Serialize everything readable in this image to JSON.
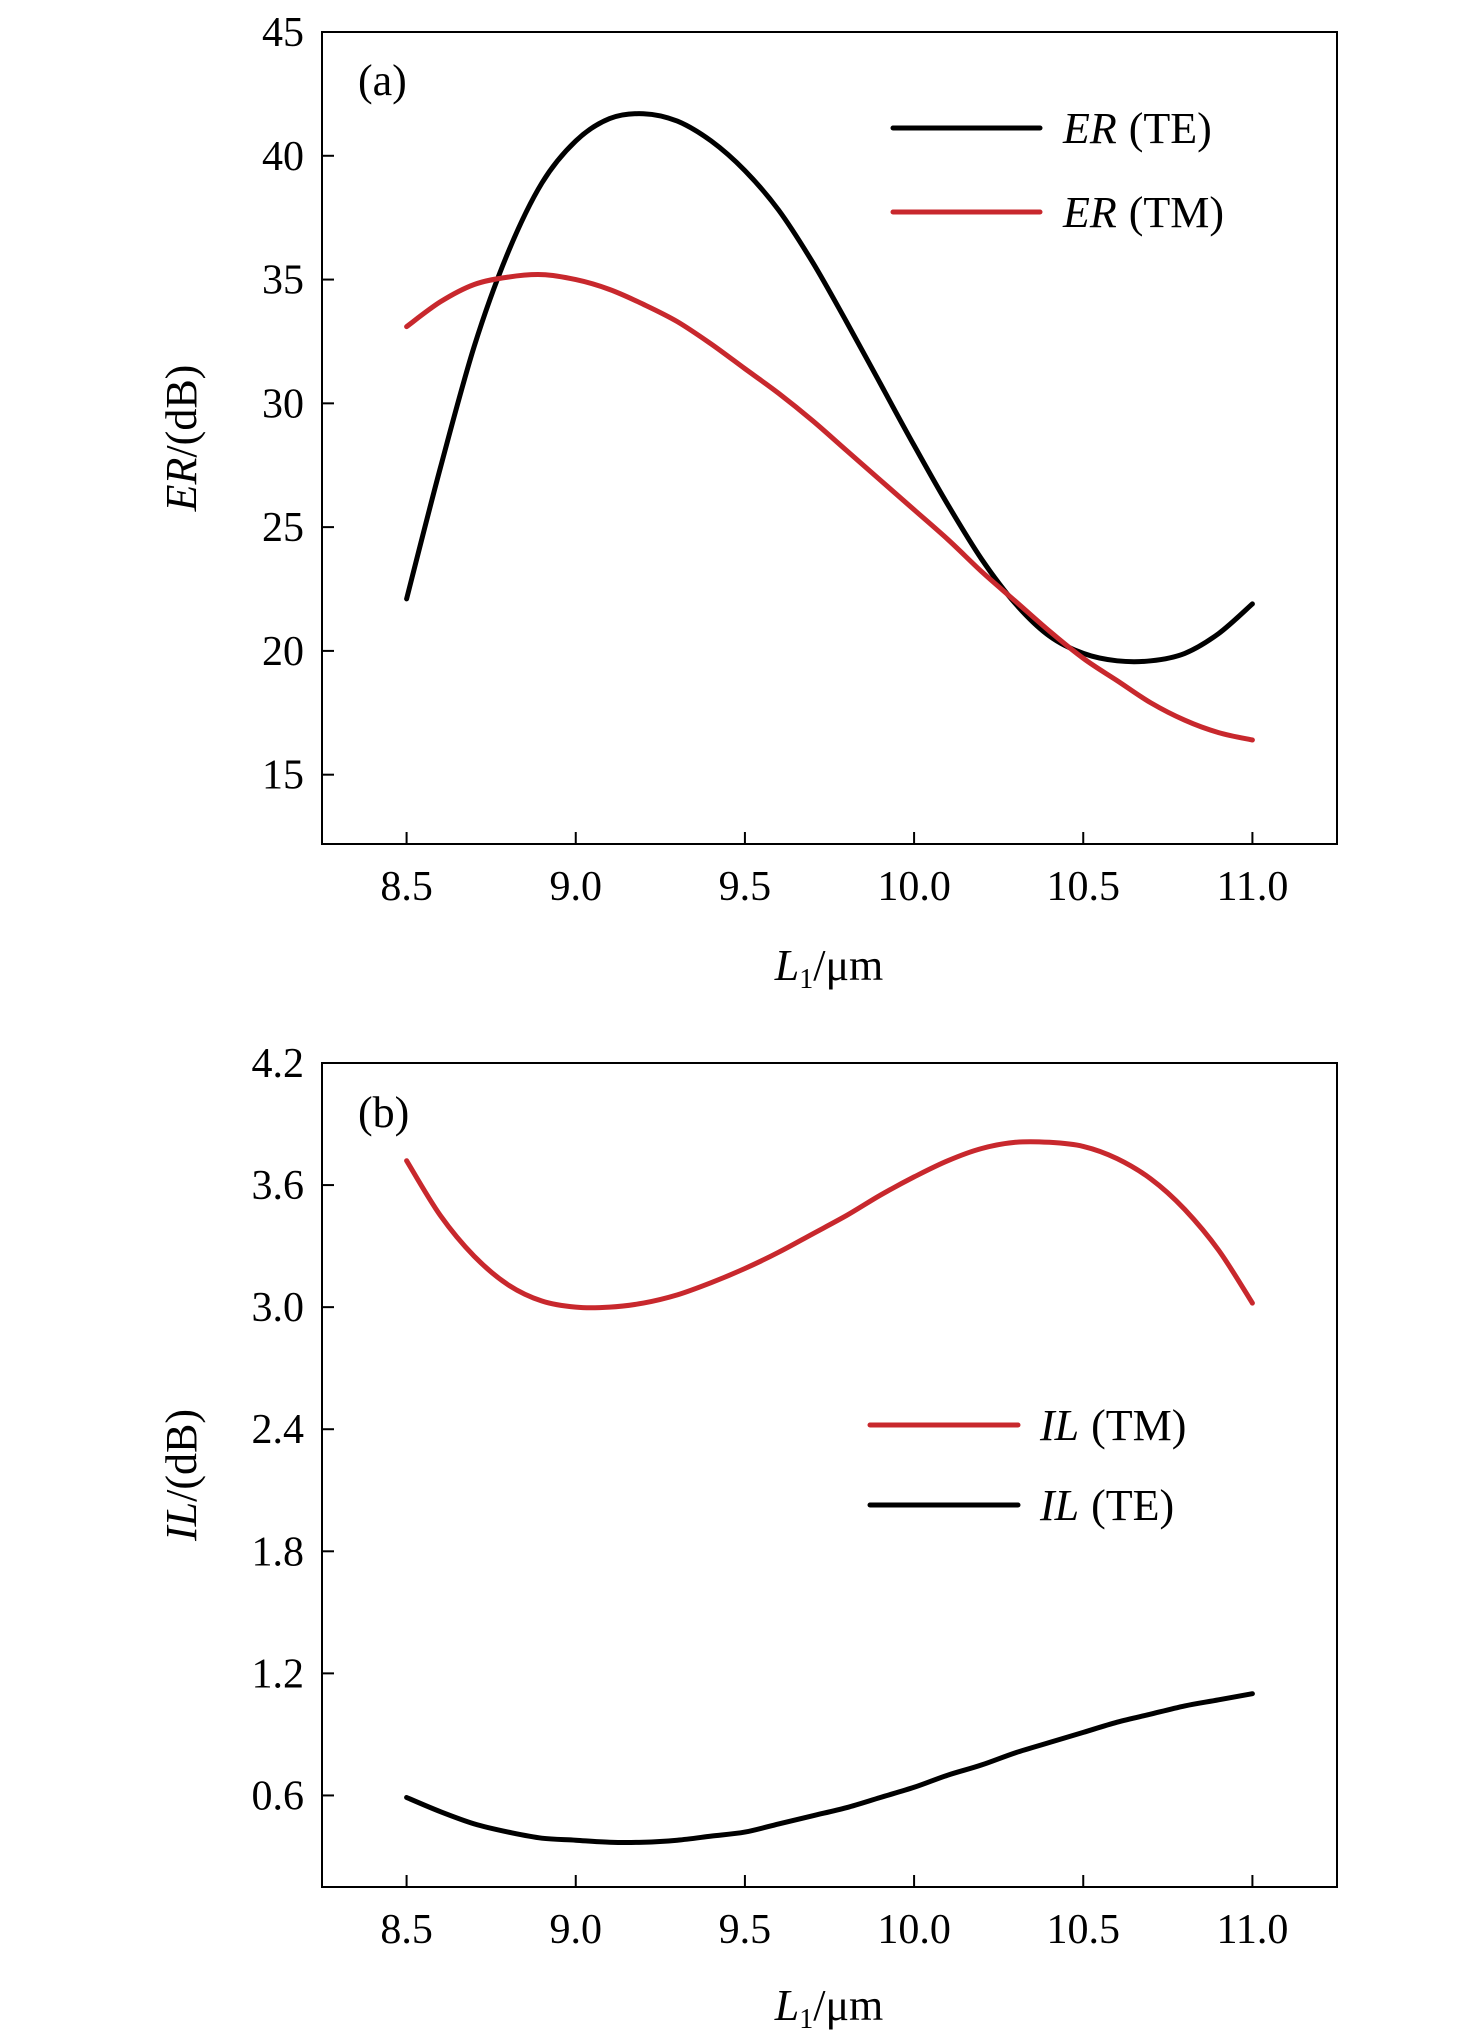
{
  "chart_data": [
    {
      "type": "line",
      "panel_label": "(a)",
      "xlabel": {
        "main": "L",
        "sub": "1",
        "unit": "/μm"
      },
      "ylabel": {
        "main": "ER",
        "unit": "/(dB)"
      },
      "xlim": [
        8.25,
        11.25
      ],
      "ylim": [
        12.2,
        45
      ],
      "xticks": [
        8.5,
        9.0,
        9.5,
        10.0,
        10.5,
        11.0
      ],
      "xtick_labels": [
        "8.5",
        "9.0",
        "9.5",
        "10.0",
        "10.5",
        "11.0"
      ],
      "yticks": [
        15,
        20,
        25,
        30,
        35,
        40,
        45
      ],
      "ytick_labels": [
        "15",
        "20",
        "25",
        "30",
        "35",
        "40",
        "45"
      ],
      "legend_position": "top-right",
      "series": [
        {
          "name": "ER (TE)",
          "legend_main": "ER",
          "legend_mode": "(TE)",
          "color": "#000000",
          "x": [
            8.5,
            8.6,
            8.7,
            8.8,
            8.9,
            9.0,
            9.1,
            9.2,
            9.3,
            9.4,
            9.5,
            9.6,
            9.7,
            9.8,
            9.9,
            10.0,
            10.1,
            10.2,
            10.3,
            10.4,
            10.5,
            10.6,
            10.7,
            10.8,
            10.9,
            11.0
          ],
          "values": [
            22.1,
            27.4,
            32.3,
            36.1,
            38.9,
            40.6,
            41.5,
            41.7,
            41.4,
            40.6,
            39.4,
            37.8,
            35.7,
            33.3,
            30.8,
            28.3,
            25.9,
            23.7,
            21.9,
            20.6,
            19.9,
            19.6,
            19.6,
            19.9,
            20.7,
            21.9
          ]
        },
        {
          "name": "ER (TM)",
          "legend_main": "ER",
          "legend_mode": "(TM)",
          "color": "#c8282d",
          "x": [
            8.5,
            8.6,
            8.7,
            8.8,
            8.9,
            9.0,
            9.1,
            9.2,
            9.3,
            9.4,
            9.5,
            9.6,
            9.7,
            9.8,
            9.9,
            10.0,
            10.1,
            10.2,
            10.3,
            10.4,
            10.5,
            10.6,
            10.7,
            10.8,
            10.9,
            11.0
          ],
          "values": [
            33.1,
            34.1,
            34.8,
            35.1,
            35.2,
            35.0,
            34.6,
            34.0,
            33.3,
            32.4,
            31.4,
            30.4,
            29.3,
            28.1,
            26.9,
            25.7,
            24.5,
            23.2,
            22.0,
            20.8,
            19.7,
            18.8,
            17.9,
            17.2,
            16.7,
            16.4
          ]
        }
      ]
    },
    {
      "type": "line",
      "panel_label": "(b)",
      "xlabel": {
        "main": "L",
        "sub": "1",
        "unit": "/μm"
      },
      "ylabel": {
        "main": "IL",
        "unit": "/(dB)"
      },
      "xlim": [
        8.25,
        11.25
      ],
      "ylim": [
        0.15,
        4.2
      ],
      "xticks": [
        8.5,
        9.0,
        9.5,
        10.0,
        10.5,
        11.0
      ],
      "xtick_labels": [
        "8.5",
        "9.0",
        "9.5",
        "10.0",
        "10.5",
        "11.0"
      ],
      "yticks": [
        0.6,
        1.2,
        1.8,
        2.4,
        3.0,
        3.6,
        4.2
      ],
      "ytick_labels": [
        "0.6",
        "1.2",
        "1.8",
        "2.4",
        "3.0",
        "3.6",
        "4.2"
      ],
      "legend_position": "center-right",
      "series": [
        {
          "name": "IL (TM)",
          "legend_main": "IL",
          "legend_mode": "(TM)",
          "color": "#c8282d",
          "x": [
            8.5,
            8.6,
            8.7,
            8.8,
            8.9,
            9.0,
            9.1,
            9.2,
            9.3,
            9.4,
            9.5,
            9.6,
            9.7,
            9.8,
            9.9,
            10.0,
            10.1,
            10.2,
            10.3,
            10.4,
            10.5,
            10.6,
            10.7,
            10.8,
            10.9,
            11.0
          ],
          "values": [
            3.72,
            3.45,
            3.25,
            3.11,
            3.03,
            3.0,
            3.0,
            3.02,
            3.06,
            3.12,
            3.19,
            3.27,
            3.36,
            3.45,
            3.55,
            3.64,
            3.72,
            3.78,
            3.81,
            3.81,
            3.79,
            3.73,
            3.63,
            3.48,
            3.28,
            3.02
          ]
        },
        {
          "name": "IL (TE)",
          "legend_main": "IL",
          "legend_mode": "(TE)",
          "color": "#000000",
          "x": [
            8.5,
            8.6,
            8.7,
            8.8,
            8.9,
            9.0,
            9.1,
            9.2,
            9.3,
            9.4,
            9.5,
            9.6,
            9.7,
            9.8,
            9.9,
            10.0,
            10.1,
            10.2,
            10.3,
            10.4,
            10.5,
            10.6,
            10.7,
            10.8,
            10.9,
            11.0
          ],
          "values": [
            0.59,
            0.52,
            0.46,
            0.42,
            0.39,
            0.38,
            0.37,
            0.37,
            0.38,
            0.4,
            0.42,
            0.46,
            0.5,
            0.54,
            0.59,
            0.64,
            0.7,
            0.75,
            0.81,
            0.86,
            0.91,
            0.96,
            1.0,
            1.04,
            1.07,
            1.1
          ]
        }
      ]
    }
  ]
}
